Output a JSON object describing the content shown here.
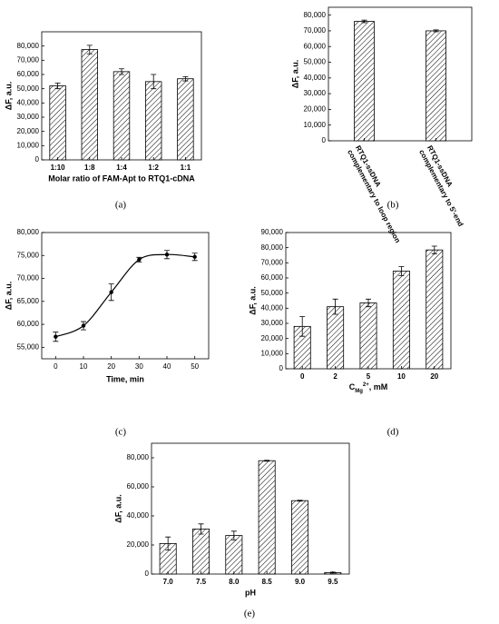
{
  "chart_data": [
    {
      "type": "bar",
      "panel": "(a)",
      "y_label": "ΔF, a.u.",
      "x_label": "Molar ratio of FAM-Apt to RTQ1-cDNA",
      "categories": [
        "1:10",
        "1:8",
        "1:4",
        "1:2",
        "1:1"
      ],
      "values": [
        52000,
        77500,
        62000,
        55000,
        57000
      ],
      "errors": [
        2000,
        3000,
        2000,
        5000,
        1500
      ],
      "color": "#000000",
      "ylim": [
        0,
        90000
      ],
      "yticks": [
        0,
        {
          "value": 10000,
          "label": "10,000"
        },
        {
          "value": 20000,
          "label": "20,000"
        },
        {
          "value": 30000,
          "label": "30,000"
        },
        {
          "value": 40000,
          "label": "40,000"
        },
        {
          "value": 50000,
          "label": "50,000"
        },
        {
          "value": 60000,
          "label": "60,000"
        },
        {
          "value": 70000,
          "label": "70,000"
        },
        {
          "value": 80000,
          "label": "80,000"
        }
      ]
    },
    {
      "type": "bar",
      "panel": "(b)",
      "y_label": "ΔF, a.u.",
      "categories": [
        [
          "RTQ1-ssDNA",
          "complementary to loop region"
        ],
        [
          "RTQ1-ssDNA",
          "complementary to 5'-end"
        ]
      ],
      "values": [
        76000,
        70000
      ],
      "errors": [
        800,
        600
      ],
      "color": "#000000",
      "ylim": [
        0,
        85000
      ],
      "yticks": [
        0,
        {
          "value": 10000,
          "label": "10,000"
        },
        {
          "value": 20000,
          "label": "20,000"
        },
        {
          "value": 30000,
          "label": "30,000"
        },
        {
          "value": 40000,
          "label": "40,000"
        },
        {
          "value": 50000,
          "label": "50,000"
        },
        {
          "value": 60000,
          "label": "60,000"
        },
        {
          "value": 70000,
          "label": "70,000"
        },
        {
          "value": 80000,
          "label": "80,000"
        }
      ]
    },
    {
      "type": "line",
      "panel": "(c)",
      "y_label": "ΔF, a.u.",
      "x_label": "Time, min",
      "x": [
        0,
        10,
        20,
        30,
        40,
        50
      ],
      "values": [
        57300,
        59700,
        67000,
        74100,
        75200,
        74700
      ],
      "errors": [
        1000,
        900,
        1800,
        500,
        900,
        800
      ],
      "color": "#000000",
      "xlim": [
        -5,
        55
      ],
      "xticks": [
        0,
        10,
        20,
        30,
        40,
        50
      ],
      "ylim": [
        52500,
        80000
      ],
      "yticks": [
        {
          "value": 55000,
          "label": "55,000"
        },
        {
          "value": 60000,
          "label": "60,000"
        },
        {
          "value": 65000,
          "label": "65,000"
        },
        {
          "value": 70000,
          "label": "70,000"
        },
        {
          "value": 75000,
          "label": "75,000"
        },
        {
          "value": 80000,
          "label": "80,000"
        }
      ]
    },
    {
      "type": "bar",
      "panel": "(d)",
      "y_label": "ΔF, a.u.",
      "x_label": {
        "main": "C",
        "sub": "Mg",
        "sup": "2+",
        "unit": ", mM"
      },
      "categories": [
        "0",
        "2",
        "5",
        "10",
        "20"
      ],
      "values": [
        28000,
        41000,
        43500,
        64500,
        78500
      ],
      "errors": [
        6500,
        5000,
        2500,
        3000,
        2500
      ],
      "color": "#000000",
      "ylim": [
        0,
        90000
      ],
      "yticks": [
        0,
        {
          "value": 10000,
          "label": "10,000"
        },
        {
          "value": 20000,
          "label": "20,000"
        },
        {
          "value": 30000,
          "label": "30,000"
        },
        {
          "value": 40000,
          "label": "40,000"
        },
        {
          "value": 50000,
          "label": "50,000"
        },
        {
          "value": 60000,
          "label": "60,000"
        },
        {
          "value": 70000,
          "label": "70,000"
        },
        {
          "value": 80000,
          "label": "80,000"
        },
        {
          "value": 90000,
          "label": "90,000"
        }
      ]
    },
    {
      "type": "bar",
      "panel": "(e)",
      "y_label": "ΔF, a.u.",
      "x_label": "pH",
      "categories": [
        "7.0",
        "7.5",
        "8.0",
        "8.5",
        "9.0",
        "9.5"
      ],
      "values": [
        21000,
        31000,
        26500,
        78000,
        50500,
        1000
      ],
      "errors": [
        4500,
        3500,
        3000,
        300,
        300,
        300
      ],
      "color": "#000000",
      "ylim": [
        0,
        90000
      ],
      "yticks": [
        0,
        {
          "value": 20000,
          "label": "20,000"
        },
        {
          "value": 40000,
          "label": "40,000"
        },
        {
          "value": 60000,
          "label": "60,000"
        },
        {
          "value": 80000,
          "label": "80,000"
        }
      ]
    }
  ]
}
